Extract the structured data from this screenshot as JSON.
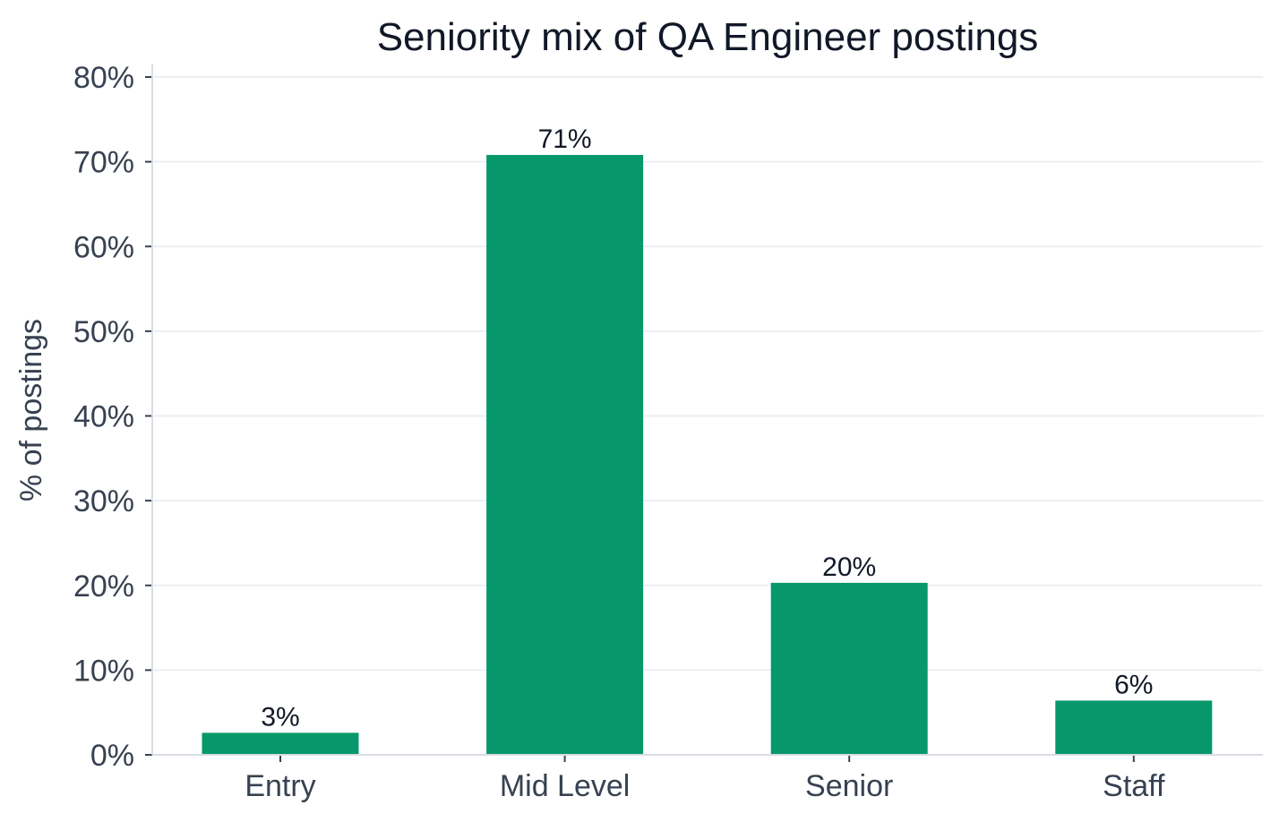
{
  "chart_data": {
    "type": "bar",
    "title": "Seniority mix of QA Engineer postings",
    "xlabel": "",
    "ylabel": "% of postings",
    "categories": [
      "Entry",
      "Mid Level",
      "Senior",
      "Staff"
    ],
    "values": [
      2.6,
      70.8,
      20.3,
      6.4
    ],
    "data_labels": [
      "3%",
      "71%",
      "20%",
      "6%"
    ],
    "ylim": [
      0,
      80
    ],
    "yticks": [
      0,
      10,
      20,
      30,
      40,
      50,
      60,
      70,
      80
    ],
    "ytick_labels": [
      "0%",
      "10%",
      "20%",
      "30%",
      "40%",
      "50%",
      "60%",
      "70%",
      "80%"
    ],
    "grid": true,
    "bar_color": "#06976a"
  }
}
